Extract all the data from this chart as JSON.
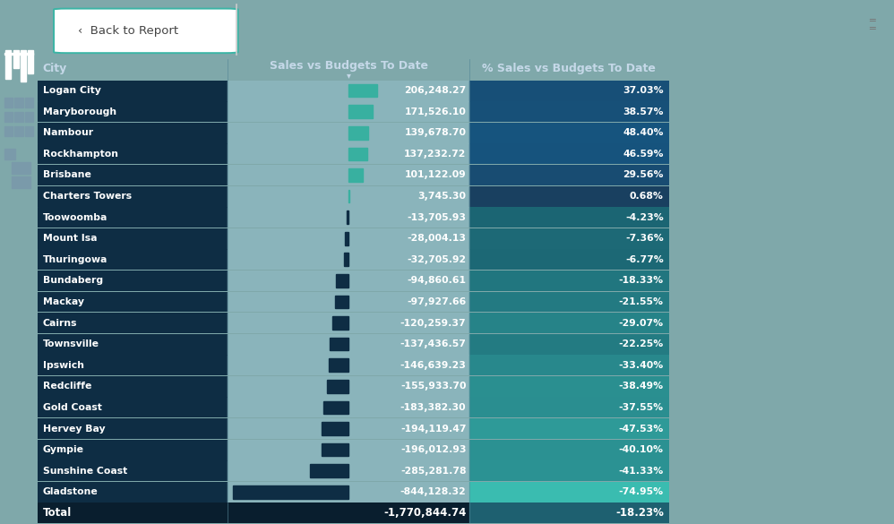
{
  "cities": [
    "Logan City",
    "Maryborough",
    "Nambour",
    "Rockhampton",
    "Brisbane",
    "Charters Towers",
    "Toowoomba",
    "Mount Isa",
    "Thuringowa",
    "Bundaberg",
    "Mackay",
    "Cairns",
    "Townsville",
    "Ipswich",
    "Redcliffe",
    "Gold Coast",
    "Hervey Bay",
    "Gympie",
    "Sunshine Coast",
    "Gladstone"
  ],
  "sales_vs_budget": [
    206248.27,
    171526.1,
    139678.7,
    137232.72,
    101122.09,
    3745.3,
    -13705.93,
    -28004.13,
    -32705.92,
    -94860.61,
    -97927.66,
    -120259.37,
    -137436.57,
    -146639.23,
    -155933.7,
    -183382.3,
    -194119.47,
    -196012.93,
    -285281.78,
    -844128.32
  ],
  "pct_sales_vs_budget": [
    37.03,
    38.57,
    48.4,
    46.59,
    29.56,
    0.68,
    -4.23,
    -7.36,
    -6.77,
    -18.33,
    -21.55,
    -29.07,
    -22.25,
    -33.4,
    -38.49,
    -37.55,
    -47.53,
    -40.1,
    -41.33,
    -74.95
  ],
  "total_sales": -1770844.74,
  "total_pct": -18.23,
  "sidebar_bg": "#252e38",
  "outer_bg": "#7fa8aa",
  "topbar_bg": "#f2f2f2",
  "header_bg": "#1b4060",
  "header_text": "#c5d8e8",
  "city_bg": "#0e2d44",
  "svb_bg": "#8ab4bb",
  "pct_bg_pos_dark": "#1a4060",
  "pct_bg_pos_light": "#2070a0",
  "pct_bg_neg_low": "#3a9090",
  "pct_bg_neg_high": "#3abcb0",
  "bar_pos_color": "#38b0a0",
  "bar_neg_color": "#0e2d44",
  "total_city_bg": "#091e2e",
  "total_svb_bg": "#091e2e",
  "total_pct_bg": "#1e6070",
  "back_btn_border": "#3ab5a5",
  "separator_color": "#5a8a9a"
}
